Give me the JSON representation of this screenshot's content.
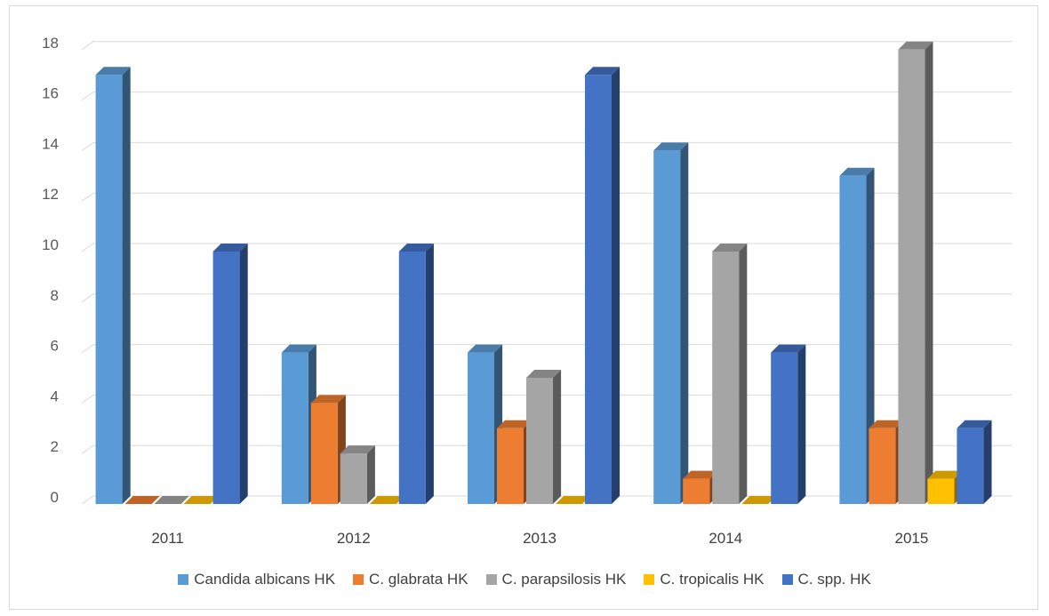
{
  "chart_data": {
    "type": "bar",
    "categories": [
      "2011",
      "2012",
      "2013",
      "2014",
      "2015"
    ],
    "series": [
      {
        "name": "Candida albicans HK",
        "color": "#5B9BD5",
        "values": [
          17,
          6,
          6,
          14,
          13
        ]
      },
      {
        "name": "C. glabrata HK",
        "color": "#ED7D31",
        "values": [
          0,
          4,
          3,
          1,
          3
        ]
      },
      {
        "name": "C. parapsilosis HK",
        "color": "#A5A5A5",
        "values": [
          0,
          2,
          5,
          10,
          18
        ]
      },
      {
        "name": "C. tropicalis HK",
        "color": "#FFC000",
        "values": [
          0,
          0,
          0,
          0,
          1
        ]
      },
      {
        "name": "C. spp. HK",
        "color": "#4472C4",
        "values": [
          10,
          10,
          17,
          6,
          3
        ]
      }
    ],
    "yticks": [
      "0",
      "2",
      "4",
      "6",
      "8",
      "10",
      "12",
      "14",
      "16",
      "18"
    ],
    "ylim": [
      0,
      18
    ],
    "grid": true,
    "legend_position": "bottom",
    "style": "3d-column"
  }
}
